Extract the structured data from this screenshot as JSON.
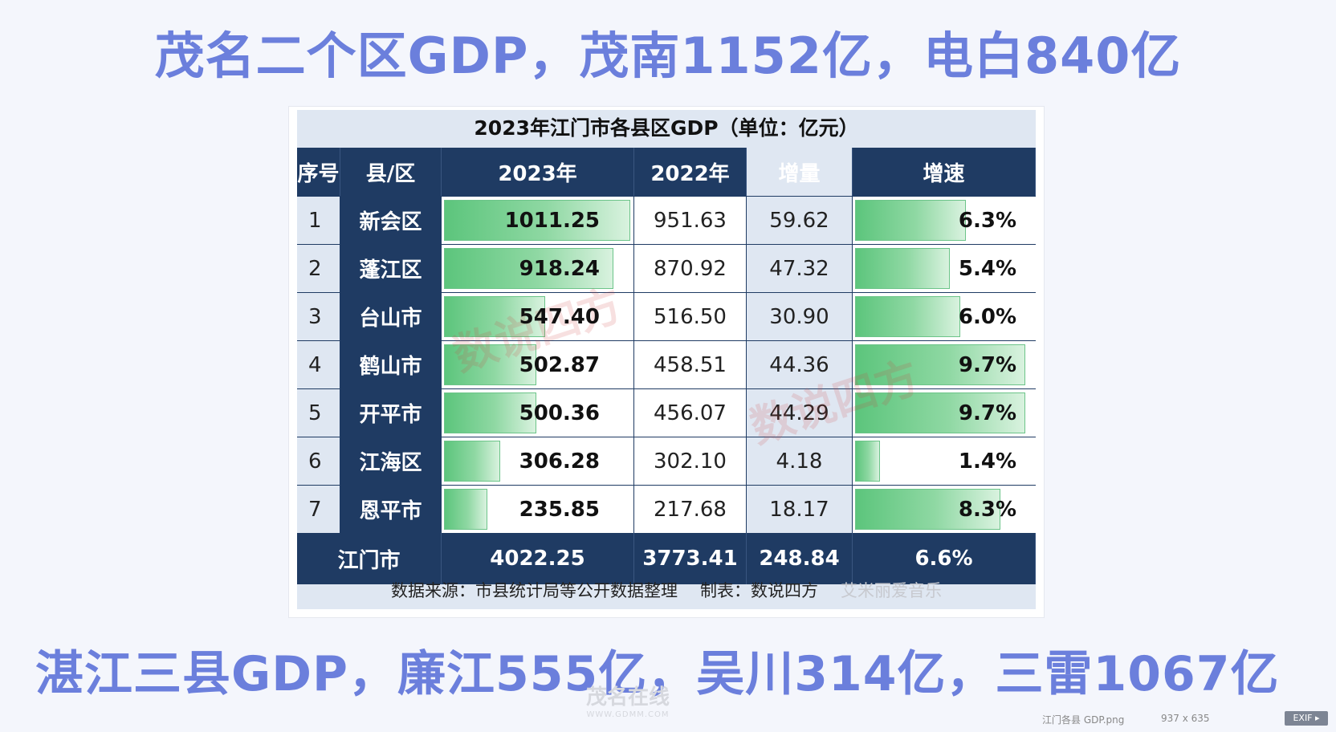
{
  "headline_top": "茂名二个区GDP，茂南1152亿，电白840亿",
  "headline_bottom": "湛江三县GDP，廉江555亿，吴川314亿，三雷1067亿",
  "table": {
    "title": "2023年江门市各县区GDP（单位：亿元）",
    "headers": [
      "序号",
      "县/区",
      "2023年",
      "2022年",
      "增量",
      "增速"
    ],
    "rows": [
      {
        "idx": "1",
        "name": "新会区",
        "y2023": "1011.25",
        "y2022": "951.63",
        "inc": "59.62",
        "rate": "6.3%",
        "v2023": 1011.25,
        "vrate": 6.3
      },
      {
        "idx": "2",
        "name": "蓬江区",
        "y2023": "918.24",
        "y2022": "870.92",
        "inc": "47.32",
        "rate": "5.4%",
        "v2023": 918.24,
        "vrate": 5.4
      },
      {
        "idx": "3",
        "name": "台山市",
        "y2023": "547.40",
        "y2022": "516.50",
        "inc": "30.90",
        "rate": "6.0%",
        "v2023": 547.4,
        "vrate": 6.0
      },
      {
        "idx": "4",
        "name": "鹤山市",
        "y2023": "502.87",
        "y2022": "458.51",
        "inc": "44.36",
        "rate": "9.7%",
        "v2023": 502.87,
        "vrate": 9.7
      },
      {
        "idx": "5",
        "name": "开平市",
        "y2023": "500.36",
        "y2022": "456.07",
        "inc": "44.29",
        "rate": "9.7%",
        "v2023": 500.36,
        "vrate": 9.7
      },
      {
        "idx": "6",
        "name": "江海区",
        "y2023": "306.28",
        "y2022": "302.10",
        "inc": "4.18",
        "rate": "1.4%",
        "v2023": 306.28,
        "vrate": 1.4
      },
      {
        "idx": "7",
        "name": "恩平市",
        "y2023": "235.85",
        "y2022": "217.68",
        "inc": "18.17",
        "rate": "8.3%",
        "v2023": 235.85,
        "vrate": 8.3
      }
    ],
    "total": {
      "name": "江门市",
      "y2023": "4022.25",
      "y2022": "3773.41",
      "inc": "248.84",
      "rate": "6.6%"
    },
    "footer_source": "数据来源：市县统计局等公开数据整理",
    "footer_maker": "制表：数说四方",
    "footer_watermark": "艾米丽爱音乐",
    "watermark": "数说四方"
  },
  "site_logo": "茂名在线",
  "site_url": "WWW.GDMM.COM",
  "status": {
    "filename": "江门各县 GDP.png",
    "dimensions": "937 x 635",
    "exif_label": "EXIF ▸"
  },
  "colors": {
    "headline": "#6b7fdc",
    "header_bg": "#1f3b63",
    "bar_green": "#5cc57c"
  }
}
